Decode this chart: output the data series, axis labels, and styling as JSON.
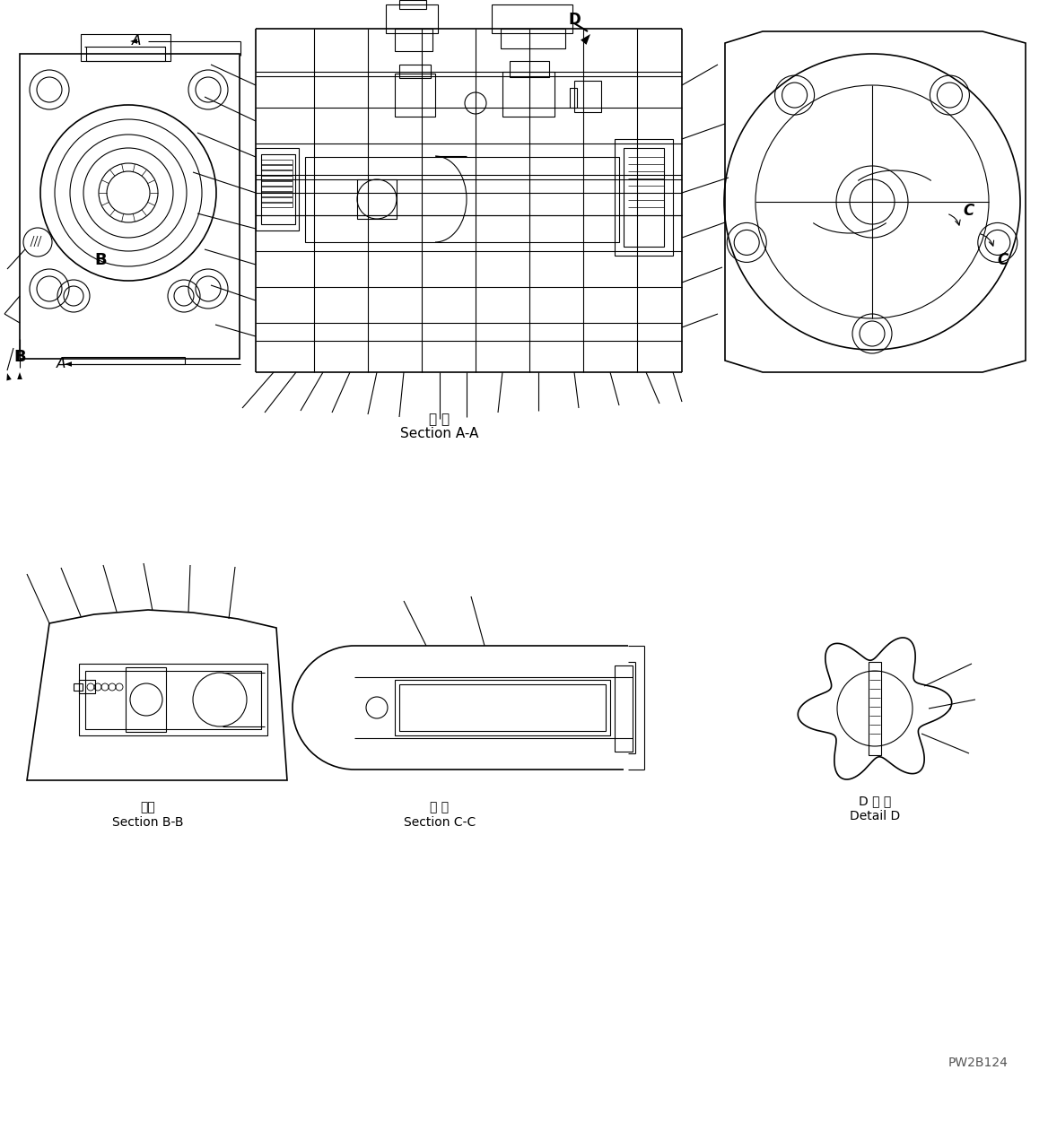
{
  "bg_color": "#ffffff",
  "line_color": "#000000",
  "watermark": "PW2B124",
  "section_aa_jp": "断 面",
  "section_aa_en": "Section A-A",
  "section_bb_jp": "断面",
  "section_bb_en": "Section B-B",
  "section_cc_jp": "断 面",
  "section_cc_en": "Section C-C",
  "detail_d_jp": "D 詳 細",
  "detail_d_en": "Detail D",
  "figsize": [
    11.68,
    12.8
  ],
  "dpi": 100
}
